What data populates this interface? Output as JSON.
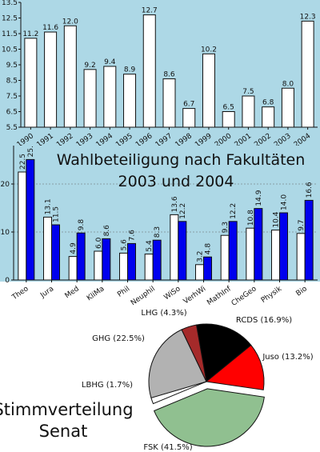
{
  "colors": {
    "panel_bg": "#add8e6",
    "bar_white": "#ffffff",
    "bar_blue": "#0000ee",
    "stroke": "#111111"
  },
  "chart_data": [
    {
      "type": "bar",
      "title": "",
      "xlabel": "",
      "ylabel": "",
      "categories": [
        "1990",
        "1991",
        "1992",
        "1993",
        "1994",
        "1995",
        "1996",
        "1997",
        "1998",
        "1999",
        "2000",
        "2001",
        "2002",
        "2003",
        "2004"
      ],
      "values": [
        11.2,
        11.6,
        12.0,
        9.2,
        9.4,
        8.9,
        12.7,
        8.6,
        6.7,
        10.2,
        6.5,
        7.5,
        6.8,
        8.0,
        12.3
      ],
      "value_labels": [
        "11.2",
        "11.6",
        "12.0",
        "9.2",
        "9.4",
        "8.9",
        "12.7",
        "8.6",
        "6.7",
        "10.2",
        "6.5",
        "7.5",
        "6.8",
        "8.0",
        "12.3"
      ],
      "ylim": [
        5.5,
        13.5
      ],
      "yticks": [
        "5.5",
        "6.5",
        "7.5",
        "8.5",
        "9.5",
        "10.5",
        "11.5",
        "12.5",
        "13.5"
      ],
      "grid": false
    },
    {
      "type": "bar",
      "title": "Wahlbeteiligung nach Fakultäten",
      "subtitle": "2003 und 2004",
      "xlabel": "",
      "ylabel": "",
      "categories": [
        "Theo",
        "Jura",
        "Med",
        "KliMa",
        "Phil",
        "Neuphil",
        "WiSo",
        "VerhWi",
        "MathInf",
        "CheGeo",
        "Physik",
        "Bio"
      ],
      "series": [
        {
          "values": [
            22.5,
            13.1,
            4.9,
            6.0,
            5.6,
            5.4,
            13.6,
            3.2,
            9.3,
            10.8,
            10.4,
            9.7
          ],
          "labels": [
            "22.5",
            "13.1",
            "4.9",
            "6.0",
            "5.6",
            "5.4",
            "13.6",
            "3.2",
            "9.3",
            "10.8",
            "10.4",
            "9.7"
          ]
        },
        {
          "values": [
            25.1,
            11.5,
            9.8,
            8.6,
            7.6,
            8.3,
            12.2,
            4.8,
            12.2,
            14.9,
            14.0,
            16.6
          ],
          "labels": [
            "25.1",
            "11.5",
            "9.8",
            "8.6",
            "7.6",
            "8.3",
            "12.2",
            "4.8",
            "12.2",
            "14.9",
            "14.0",
            "16.6"
          ]
        }
      ],
      "ylim": [
        0,
        28
      ],
      "yticks": [
        "0",
        "10",
        "20"
      ],
      "grid": true
    },
    {
      "type": "pie",
      "title": "Stimmverteilung",
      "subtitle": "Senat",
      "slices": [
        {
          "label": "RCDS (16.9%)",
          "value": 16.9,
          "color": "#000000"
        },
        {
          "label": "Juso (13.2%)",
          "value": 13.2,
          "color": "#ff0000"
        },
        {
          "label": "FSK (41.5%)",
          "value": 41.5,
          "color": "#90c090"
        },
        {
          "label": "LBHG (1.7%)",
          "value": 1.7,
          "color": "#ffffff"
        },
        {
          "label": "GHG (22.5%)",
          "value": 22.5,
          "color": "#b2b2b2"
        },
        {
          "label": "LHG (4.3%)",
          "value": 4.3,
          "color": "#a52a2a"
        }
      ]
    }
  ]
}
